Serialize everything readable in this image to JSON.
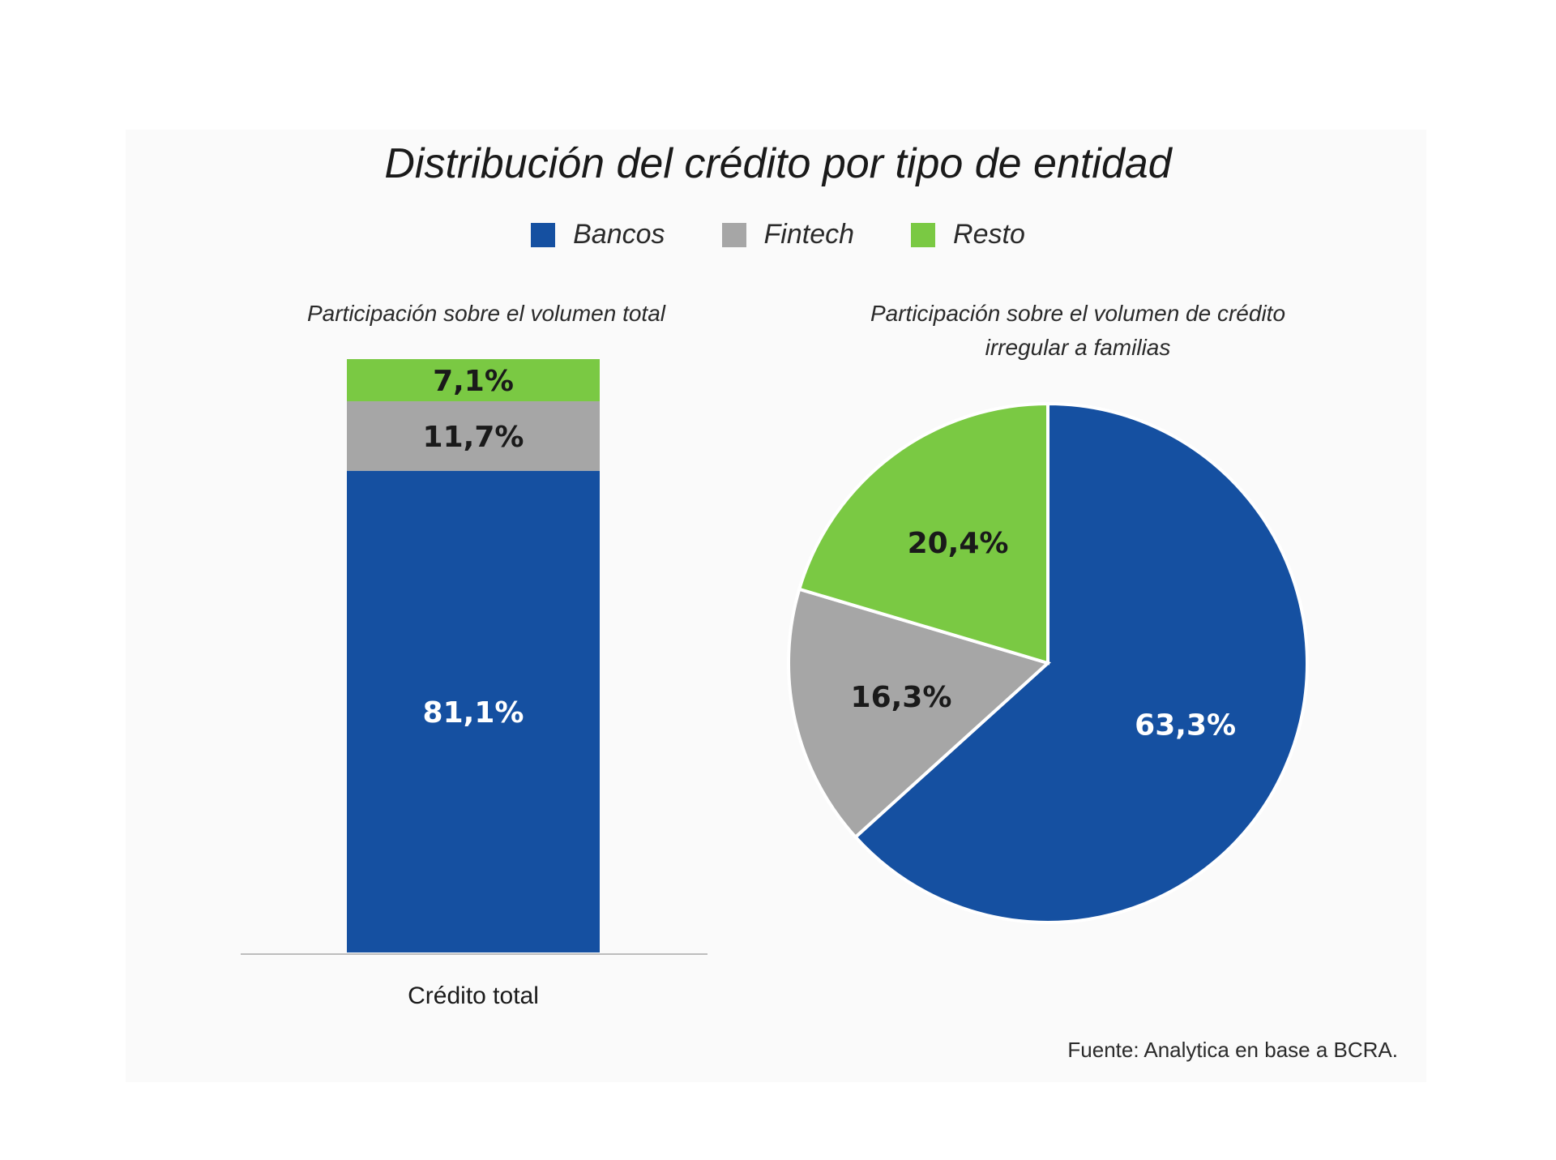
{
  "title": "Distribución del crédito por tipo de entidad",
  "legend": [
    {
      "label": "Bancos",
      "color": "#1550a1"
    },
    {
      "label": "Fintech",
      "color": "#a6a6a6"
    },
    {
      "label": "Resto",
      "color": "#7ac943"
    }
  ],
  "source": "Fuente: Analytica en base a BCRA.",
  "chart_data": [
    {
      "type": "bar",
      "title": "Participación sobre el volumen total",
      "categories": [
        "Crédito total"
      ],
      "stacked": true,
      "series": [
        {
          "name": "Bancos",
          "values": [
            81.1
          ],
          "label": "81,1%",
          "color": "#1550a1"
        },
        {
          "name": "Fintech",
          "values": [
            11.7
          ],
          "label": "11,7%",
          "color": "#a6a6a6"
        },
        {
          "name": "Resto",
          "values": [
            7.1
          ],
          "label": "7,1%",
          "color": "#7ac943"
        }
      ],
      "ylim": [
        0,
        100
      ]
    },
    {
      "type": "pie",
      "title": "Participación sobre el volumen de crédito irregular a familias",
      "slices": [
        {
          "name": "Bancos",
          "value": 63.3,
          "label": "63,3%",
          "color": "#1550a1"
        },
        {
          "name": "Fintech",
          "value": 16.3,
          "label": "16,3%",
          "color": "#a6a6a6"
        },
        {
          "name": "Resto",
          "value": 20.4,
          "label": "20,4%",
          "color": "#7ac943"
        }
      ]
    }
  ]
}
